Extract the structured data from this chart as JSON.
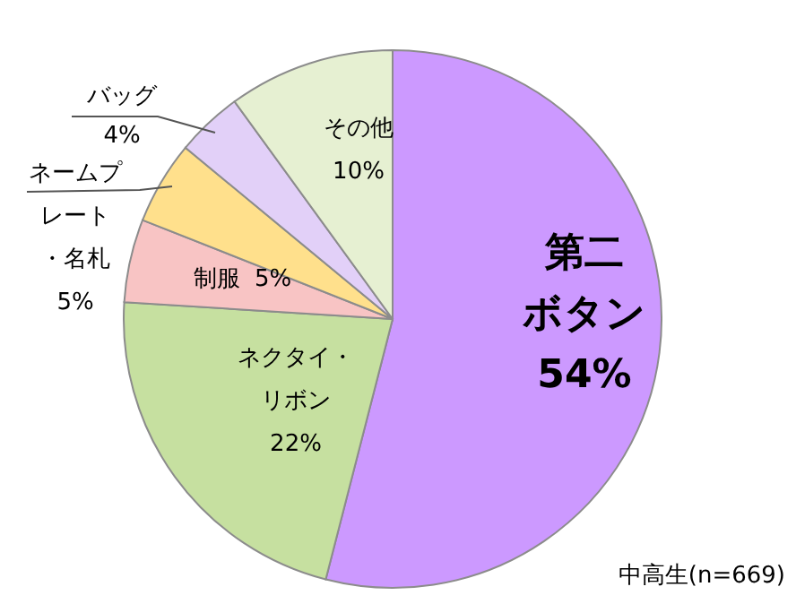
{
  "chart_data": {
    "type": "pie",
    "categories": [
      "第二ボタン",
      "ネクタイ・リボン",
      "制服",
      "ネームプレート・名札",
      "バッグ",
      "その他"
    ],
    "values": [
      54,
      22,
      5,
      5,
      4,
      10
    ],
    "value_labels": [
      "54%",
      "22%",
      "5%",
      "5%",
      "4%",
      "10%"
    ],
    "colors": [
      "#cc99ff",
      "#c6e0a0",
      "#f8c4c4",
      "#ffe08c",
      "#e2d0f8",
      "#e6f0d2"
    ],
    "annotations": [
      "中高生(n=669)"
    ]
  }
}
